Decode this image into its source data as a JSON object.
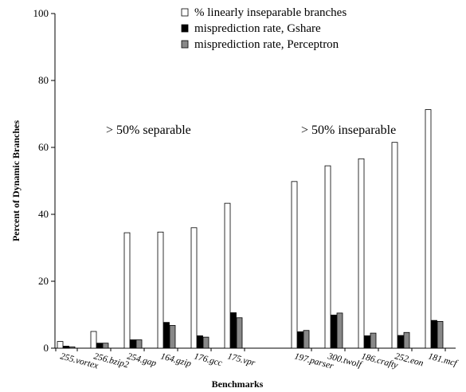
{
  "chart_data": {
    "type": "bar",
    "ylabel": "Percent of Dynamic Branches",
    "xlabel": "Benchmarks",
    "ylim": [
      0,
      100
    ],
    "yticks": [
      0,
      20,
      40,
      60,
      80,
      100
    ],
    "grid": false,
    "legend_position": "top-right",
    "categories": [
      "255.vortex",
      "256.bzip2",
      "254.gap",
      "164.gzip",
      "176.gcc",
      "175.vpr",
      "197.parser",
      "300.twolf",
      "186.crafty",
      "252.eon",
      "181.mcf"
    ],
    "gap_after_index": 5,
    "series": [
      {
        "name": "% linearly inseparable branches",
        "color": "#ffffff",
        "values": [
          2,
          5,
          34.5,
          34.7,
          36,
          43.3,
          49.8,
          54.5,
          56.6,
          61.5,
          71.3
        ]
      },
      {
        "name": "misprediction rate, Gshare",
        "color": "#000000",
        "values": [
          0.6,
          1.5,
          2.5,
          7.7,
          3.7,
          10.6,
          4.9,
          9.9,
          3.7,
          3.8,
          8.3
        ]
      },
      {
        "name": "misprediction rate, Perceptron",
        "color": "#888888",
        "values": [
          0.4,
          1.5,
          2.5,
          6.8,
          3.3,
          9.1,
          5.3,
          10.5,
          4.5,
          4.7,
          8.0
        ]
      }
    ],
    "annotations": [
      "> 50% separable",
      "> 50% inseparable"
    ]
  }
}
